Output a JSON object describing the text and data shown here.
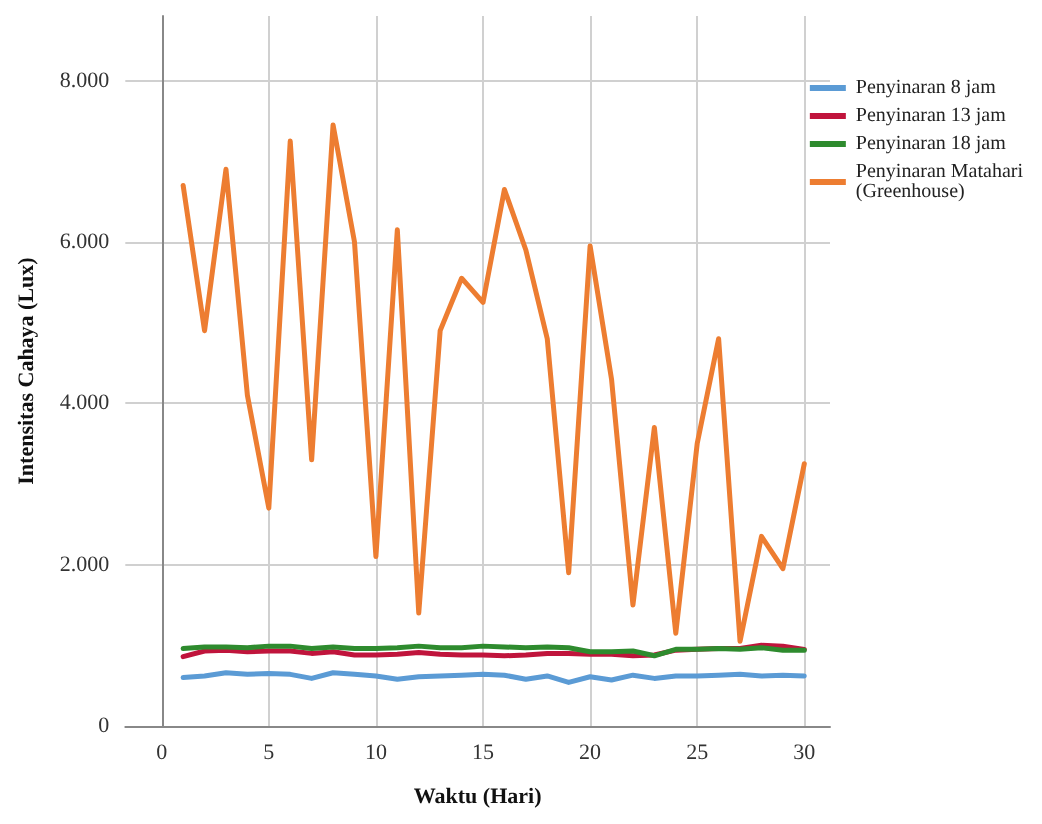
{
  "chart_data": {
    "type": "line",
    "xlabel": "Waktu (Hari)",
    "ylabel": "Intensitas Cahaya (Lux)",
    "x": [
      1,
      2,
      3,
      4,
      5,
      6,
      7,
      8,
      9,
      10,
      11,
      12,
      13,
      14,
      15,
      16,
      17,
      18,
      19,
      20,
      21,
      22,
      23,
      24,
      25,
      26,
      27,
      28,
      29,
      30
    ],
    "series": [
      {
        "name": "Penyinaran 8 jam",
        "color": "#5b9bd5",
        "values": [
          600,
          620,
          660,
          640,
          650,
          640,
          590,
          660,
          640,
          620,
          580,
          610,
          620,
          630,
          640,
          630,
          580,
          620,
          540,
          610,
          570,
          630,
          590,
          620,
          620,
          630,
          640,
          620,
          630,
          620
        ]
      },
      {
        "name": "Penyinaran 13 jam",
        "color": "#c0143c",
        "values": [
          860,
          930,
          940,
          920,
          930,
          930,
          900,
          920,
          880,
          880,
          890,
          910,
          890,
          880,
          880,
          870,
          880,
          900,
          900,
          890,
          890,
          870,
          880,
          940,
          950,
          960,
          960,
          1000,
          990,
          950
        ]
      },
      {
        "name": "Penyinaran 18 jam",
        "color": "#2e8b2e",
        "values": [
          960,
          980,
          980,
          970,
          990,
          990,
          960,
          980,
          960,
          960,
          970,
          990,
          970,
          970,
          990,
          980,
          970,
          980,
          970,
          920,
          920,
          930,
          870,
          950,
          950,
          960,
          950,
          970,
          940,
          940
        ]
      },
      {
        "name": "Penyinaran Matahari (Greenhouse)",
        "color": "#ed7d31",
        "values": [
          6700,
          4900,
          6900,
          4100,
          2700,
          7250,
          3300,
          7450,
          6000,
          2100,
          6150,
          1400,
          4900,
          5550,
          5250,
          6650,
          5900,
          4800,
          1900,
          5950,
          4300,
          1500,
          3700,
          1150,
          3500,
          4800,
          1050,
          2350,
          1950,
          3250
        ]
      }
    ],
    "xlim": [
      -1.7,
      31.2
    ],
    "xticks": [
      0,
      5,
      10,
      15,
      20,
      25,
      30
    ],
    "ylim": [
      0,
      8800
    ],
    "yticks": [
      {
        "value": 0,
        "label": "0"
      },
      {
        "value": 2000,
        "label": "2.000"
      },
      {
        "value": 4000,
        "label": "4.000"
      },
      {
        "value": 6000,
        "label": "6.000"
      },
      {
        "value": 8000,
        "label": "8.000"
      }
    ],
    "grid": true,
    "legend": "top right",
    "marker": "none",
    "line_style": "solid"
  }
}
